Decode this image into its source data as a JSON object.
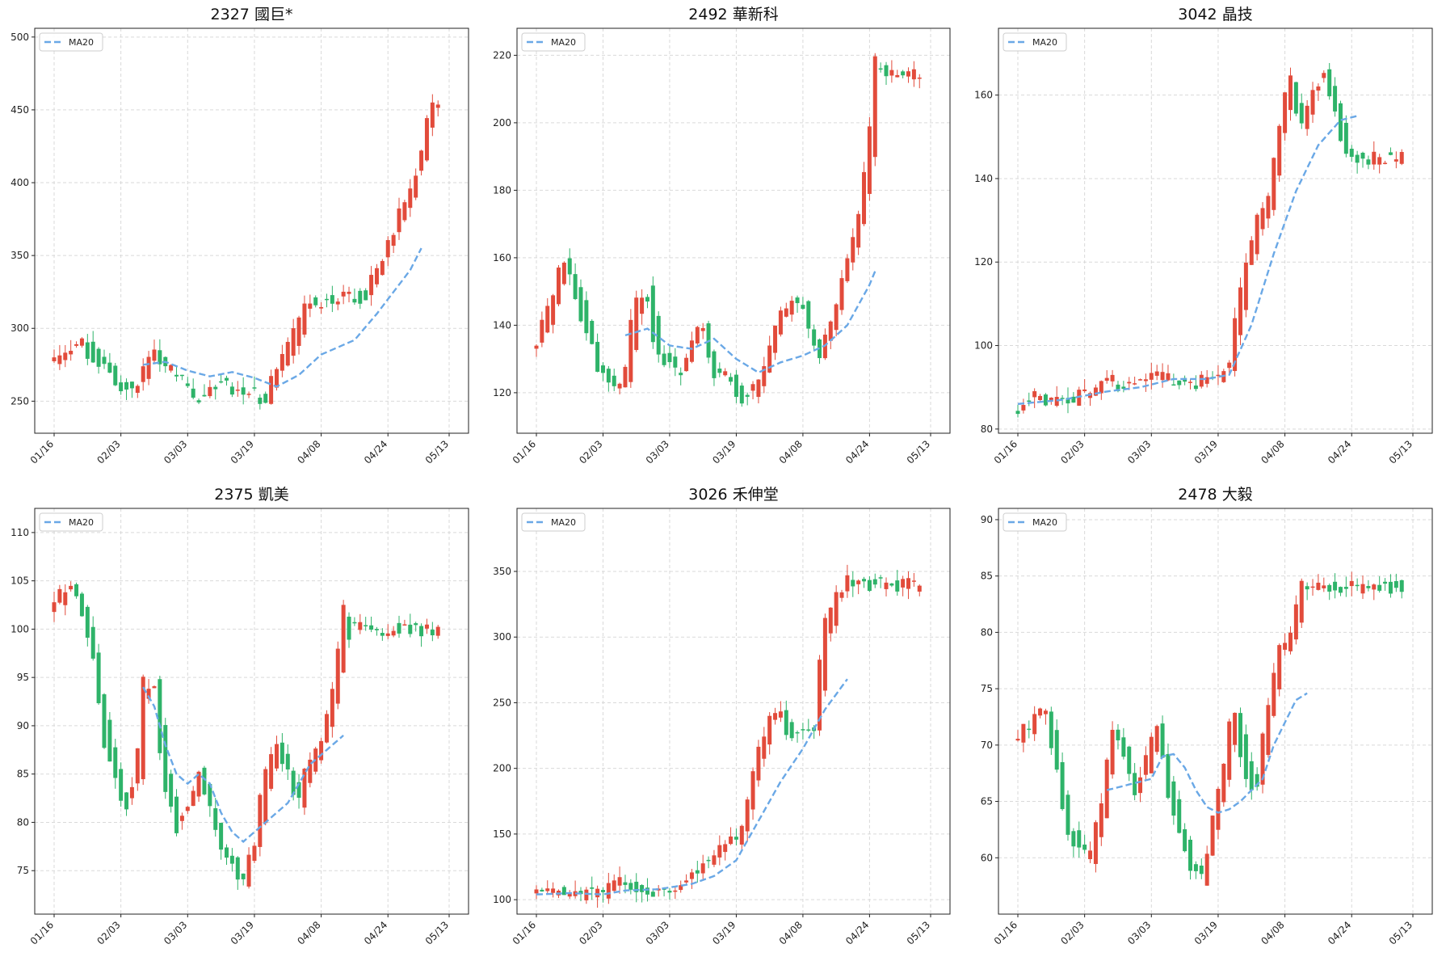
{
  "figure": {
    "colors": {
      "up": "#e24b3b",
      "down": "#2eb369",
      "ma": "#6aa8e6",
      "grid": "#d9d9d9"
    },
    "legend_label": "MA20"
  },
  "x_ticks": [
    "01/16",
    "02/03",
    "03/03",
    "03/19",
    "04/08",
    "04/24",
    "05/13"
  ],
  "chart_data": [
    {
      "type": "candlestick",
      "title": "2327 國巨*",
      "xlabel": "",
      "ylabel": "",
      "ylim": [
        228,
        506
      ],
      "yticks": [
        250,
        300,
        350,
        400,
        450,
        500
      ],
      "grid": true,
      "legend_position": "top-left",
      "x_tick_labels": [
        "01/16",
        "02/03",
        "03/03",
        "03/19",
        "04/08",
        "04/24",
        "05/13"
      ],
      "anchors": [
        [
          0,
          280
        ],
        [
          5,
          290
        ],
        [
          10,
          270
        ],
        [
          14,
          255
        ],
        [
          18,
          280
        ],
        [
          22,
          270
        ],
        [
          26,
          250
        ],
        [
          30,
          262
        ],
        [
          34,
          258
        ],
        [
          38,
          252
        ],
        [
          42,
          282
        ],
        [
          46,
          318
        ],
        [
          52,
          320
        ],
        [
          56,
          322
        ],
        [
          60,
          355
        ],
        [
          64,
          392
        ],
        [
          66,
          415
        ],
        [
          68,
          455
        ]
      ],
      "ma": [
        [
          16,
          275
        ],
        [
          20,
          277
        ],
        [
          24,
          271
        ],
        [
          28,
          267
        ],
        [
          32,
          270
        ],
        [
          36,
          266
        ],
        [
          40,
          260
        ],
        [
          44,
          268
        ],
        [
          48,
          282
        ],
        [
          54,
          292
        ],
        [
          58,
          310
        ],
        [
          62,
          330
        ],
        [
          64,
          340
        ],
        [
          66,
          355
        ]
      ]
    },
    {
      "type": "candlestick",
      "title": "2492 華新科",
      "xlabel": "",
      "ylabel": "",
      "ylim": [
        108,
        228
      ],
      "yticks": [
        120,
        140,
        160,
        180,
        200,
        220
      ],
      "grid": true,
      "legend_position": "top-left",
      "x_tick_labels": [
        "01/16",
        "02/03",
        "03/03",
        "03/19",
        "04/08",
        "04/24",
        "05/13"
      ],
      "anchors": [
        [
          0,
          134
        ],
        [
          3,
          146
        ],
        [
          5,
          158
        ],
        [
          7,
          152
        ],
        [
          9,
          140
        ],
        [
          11,
          130
        ],
        [
          14,
          122
        ],
        [
          16,
          124
        ],
        [
          18,
          145
        ],
        [
          20,
          150
        ],
        [
          22,
          132
        ],
        [
          26,
          126
        ],
        [
          28,
          134
        ],
        [
          30,
          140
        ],
        [
          32,
          126
        ],
        [
          35,
          124
        ],
        [
          37,
          118
        ],
        [
          40,
          122
        ],
        [
          43,
          138
        ],
        [
          46,
          148
        ],
        [
          48,
          145
        ],
        [
          51,
          132
        ],
        [
          53,
          138
        ],
        [
          56,
          158
        ],
        [
          58,
          168
        ],
        [
          60,
          190
        ],
        [
          61,
          215
        ]
      ],
      "ma": [
        [
          16,
          137
        ],
        [
          20,
          139
        ],
        [
          24,
          134
        ],
        [
          28,
          133
        ],
        [
          32,
          136
        ],
        [
          36,
          130
        ],
        [
          40,
          126
        ],
        [
          44,
          129
        ],
        [
          48,
          131
        ],
        [
          52,
          134
        ],
        [
          56,
          140
        ],
        [
          60,
          152
        ],
        [
          61,
          156
        ]
      ]
    },
    {
      "type": "candlestick",
      "title": "3042 晶技",
      "xlabel": "",
      "ylabel": "",
      "ylim": [
        79,
        176
      ],
      "yticks": [
        80,
        100,
        120,
        140,
        160
      ],
      "grid": true,
      "legend_position": "top-left",
      "x_tick_labels": [
        "01/16",
        "02/03",
        "03/03",
        "03/19",
        "04/08",
        "04/24",
        "05/13"
      ],
      "anchors": [
        [
          0,
          85
        ],
        [
          4,
          88
        ],
        [
          8,
          86
        ],
        [
          12,
          88
        ],
        [
          16,
          92
        ],
        [
          20,
          90
        ],
        [
          24,
          93
        ],
        [
          28,
          92
        ],
        [
          32,
          91
        ],
        [
          36,
          92
        ],
        [
          38,
          94
        ],
        [
          41,
          118
        ],
        [
          43,
          128
        ],
        [
          45,
          133
        ],
        [
          47,
          150
        ],
        [
          49,
          164
        ],
        [
          51,
          152
        ],
        [
          53,
          160
        ],
        [
          55,
          165
        ],
        [
          57,
          158
        ],
        [
          59,
          148
        ],
        [
          61,
          145
        ]
      ],
      "ma": [
        [
          0,
          86
        ],
        [
          8,
          87
        ],
        [
          16,
          89
        ],
        [
          22,
          90
        ],
        [
          28,
          92
        ],
        [
          34,
          92
        ],
        [
          38,
          93
        ],
        [
          42,
          105
        ],
        [
          46,
          122
        ],
        [
          50,
          137
        ],
        [
          54,
          148
        ],
        [
          58,
          154
        ],
        [
          61,
          155
        ]
      ]
    },
    {
      "type": "candlestick",
      "title": "2375 凱美",
      "xlabel": "",
      "ylabel": "",
      "ylim": [
        70.5,
        112.5
      ],
      "yticks": [
        75,
        80,
        85,
        90,
        95,
        100,
        105,
        110
      ],
      "grid": true,
      "legend_position": "top-left",
      "x_tick_labels": [
        "01/16",
        "02/03",
        "03/03",
        "03/19",
        "04/08",
        "04/24",
        "05/13"
      ],
      "anchors": [
        [
          0,
          102
        ],
        [
          3,
          105
        ],
        [
          5,
          102
        ],
        [
          7,
          98
        ],
        [
          9,
          90
        ],
        [
          11,
          85
        ],
        [
          13,
          82
        ],
        [
          15,
          85
        ],
        [
          16,
          93
        ],
        [
          18,
          95
        ],
        [
          20,
          85
        ],
        [
          22,
          80
        ],
        [
          24,
          81
        ],
        [
          26,
          85
        ],
        [
          28,
          82
        ],
        [
          30,
          78
        ],
        [
          32,
          76
        ],
        [
          34,
          74
        ],
        [
          36,
          77
        ],
        [
          38,
          84
        ],
        [
          40,
          88
        ],
        [
          42,
          86
        ],
        [
          44,
          82
        ],
        [
          46,
          86
        ],
        [
          48,
          88
        ],
        [
          50,
          92
        ],
        [
          51,
          95
        ],
        [
          52,
          102
        ],
        [
          53,
          100
        ]
      ],
      "ma": [
        [
          16,
          94
        ],
        [
          18,
          92
        ],
        [
          20,
          88
        ],
        [
          22,
          85
        ],
        [
          24,
          84
        ],
        [
          26,
          85
        ],
        [
          28,
          84
        ],
        [
          30,
          81
        ],
        [
          32,
          79
        ],
        [
          34,
          78
        ],
        [
          36,
          79
        ],
        [
          38,
          80
        ],
        [
          40,
          81
        ],
        [
          42,
          82
        ],
        [
          44,
          84
        ],
        [
          46,
          86
        ],
        [
          48,
          87
        ],
        [
          50,
          88
        ],
        [
          52,
          89
        ]
      ]
    },
    {
      "type": "candlestick",
      "title": "3026 禾伸堂",
      "xlabel": "",
      "ylabel": "",
      "ylim": [
        89,
        398
      ],
      "yticks": [
        100,
        150,
        200,
        250,
        300,
        350
      ],
      "grid": true,
      "legend_position": "top-left",
      "x_tick_labels": [
        "01/16",
        "02/03",
        "03/03",
        "03/19",
        "04/08",
        "04/24",
        "05/13"
      ],
      "anchors": [
        [
          0,
          106
        ],
        [
          4,
          108
        ],
        [
          8,
          104
        ],
        [
          12,
          105
        ],
        [
          16,
          114
        ],
        [
          20,
          108
        ],
        [
          24,
          106
        ],
        [
          28,
          118
        ],
        [
          32,
          135
        ],
        [
          34,
          144
        ],
        [
          36,
          144
        ],
        [
          38,
          165
        ],
        [
          40,
          210
        ],
        [
          42,
          232
        ],
        [
          44,
          240
        ],
        [
          46,
          225
        ],
        [
          48,
          235
        ],
        [
          50,
          225
        ],
        [
          52,
          300
        ],
        [
          54,
          325
        ],
        [
          56,
          340
        ]
      ],
      "ma": [
        [
          0,
          104
        ],
        [
          6,
          105
        ],
        [
          12,
          104
        ],
        [
          16,
          107
        ],
        [
          22,
          108
        ],
        [
          28,
          112
        ],
        [
          32,
          118
        ],
        [
          36,
          130
        ],
        [
          40,
          160
        ],
        [
          44,
          190
        ],
        [
          48,
          215
        ],
        [
          52,
          245
        ],
        [
          56,
          268
        ]
      ]
    },
    {
      "type": "candlestick",
      "title": "2478 大毅",
      "xlabel": "",
      "ylabel": "",
      "ylim": [
        55,
        91
      ],
      "yticks": [
        60,
        65,
        70,
        75,
        80,
        85,
        90
      ],
      "grid": true,
      "legend_position": "top-left",
      "x_tick_labels": [
        "01/16",
        "02/03",
        "03/03",
        "03/19",
        "04/08",
        "04/24",
        "05/13"
      ],
      "anchors": [
        [
          0,
          70.5
        ],
        [
          3,
          72
        ],
        [
          5,
          73
        ],
        [
          7,
          69
        ],
        [
          9,
          63
        ],
        [
          11,
          61
        ],
        [
          13,
          60
        ],
        [
          15,
          64
        ],
        [
          17,
          71
        ],
        [
          19,
          70
        ],
        [
          21,
          66
        ],
        [
          23,
          68
        ],
        [
          25,
          72
        ],
        [
          27,
          67
        ],
        [
          29,
          63
        ],
        [
          31,
          60
        ],
        [
          33,
          58
        ],
        [
          35,
          62
        ],
        [
          37,
          67
        ],
        [
          39,
          73
        ],
        [
          41,
          68
        ],
        [
          43,
          66
        ],
        [
          45,
          72
        ],
        [
          47,
          78
        ],
        [
          49,
          79
        ],
        [
          51,
          84
        ],
        [
          52,
          84
        ]
      ],
      "ma": [
        [
          16,
          66
        ],
        [
          20,
          66.5
        ],
        [
          24,
          67
        ],
        [
          26,
          69
        ],
        [
          28,
          69.2
        ],
        [
          30,
          68
        ],
        [
          32,
          66
        ],
        [
          34,
          64.5
        ],
        [
          36,
          64
        ],
        [
          38,
          64.3
        ],
        [
          40,
          65
        ],
        [
          42,
          66
        ],
        [
          44,
          67
        ],
        [
          46,
          70
        ],
        [
          48,
          72
        ],
        [
          50,
          74
        ],
        [
          52,
          74.6
        ]
      ]
    }
  ]
}
